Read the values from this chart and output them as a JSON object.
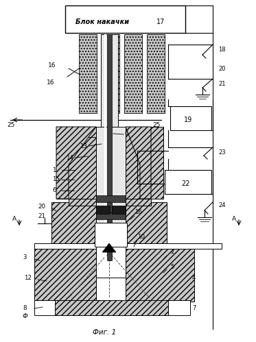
{
  "bg_color": "#ffffff",
  "title": "Фиг. 1",
  "blok_text": "Блок накачки",
  "num_17": "17",
  "hatch_fc": "#c8c8c8",
  "dark_fc": "#404040",
  "light_gray": "#e8e8e8",
  "mid_gray": "#b0b0b0"
}
